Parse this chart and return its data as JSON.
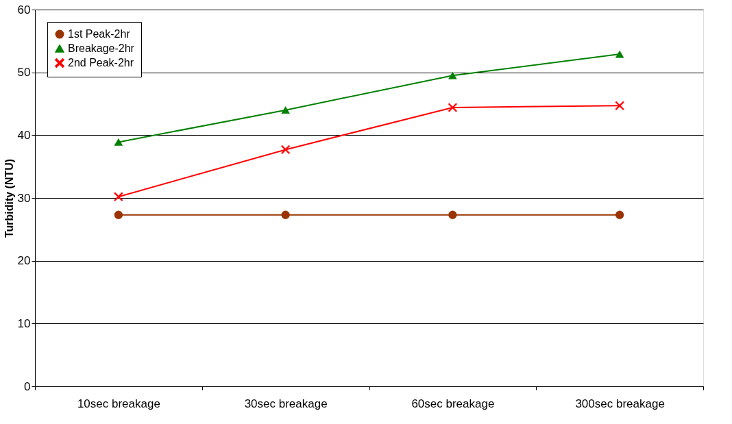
{
  "chart_data": {
    "type": "line",
    "ylabel": "Turbidity (NTU)",
    "categories": [
      "10sec breakage",
      "30sec breakage",
      "60sec breakage",
      "300sec breakage"
    ],
    "series": [
      {
        "name": "1st Peak-2hr",
        "color": "#993300",
        "marker": "circle",
        "values": [
          27.3,
          27.3,
          27.3,
          27.3
        ]
      },
      {
        "name": "Breakage-2hr",
        "color": "#008000",
        "marker": "triangle",
        "values": [
          38.9,
          44.0,
          49.5,
          52.9
        ]
      },
      {
        "name": "2nd Peak-2hr",
        "color": "#ff0000",
        "marker": "cross",
        "values": [
          30.2,
          37.7,
          44.4,
          44.7
        ]
      }
    ],
    "ylim": [
      0,
      60
    ],
    "yticks": [
      0,
      10,
      20,
      30,
      40,
      50,
      60
    ],
    "grid": "y",
    "legend": "top left",
    "line_style": "solid"
  }
}
